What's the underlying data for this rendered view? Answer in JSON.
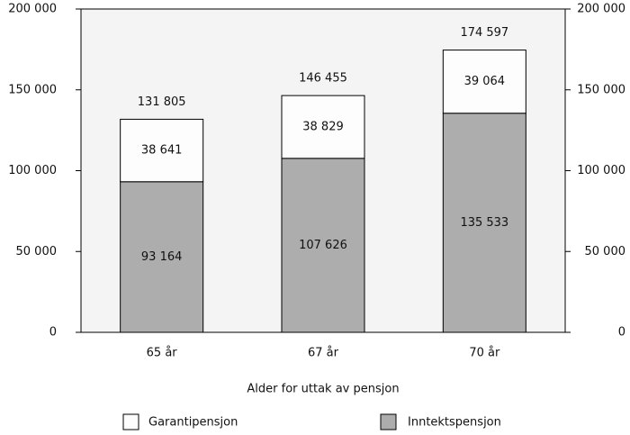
{
  "chart_data": {
    "type": "stacked-bar",
    "categories": [
      "65 år",
      "67 år",
      "70 år"
    ],
    "x_label": "Alder for uttak av pensjon",
    "series": [
      {
        "name": "Inntektspensjon",
        "color": "#adadad",
        "values": [
          93164,
          107626,
          135533
        ],
        "value_labels": [
          "93 164",
          "107 626",
          "135 533"
        ]
      },
      {
        "name": "Garantipensjon",
        "color": "#fdfdfd",
        "values": [
          38641,
          38829,
          39064
        ],
        "value_labels": [
          "38 641",
          "38 829",
          "39 064"
        ]
      }
    ],
    "totals": {
      "values": [
        131805,
        146455,
        174597
      ],
      "value_labels": [
        "131 805",
        "146 455",
        "174 597"
      ]
    },
    "ylim": [
      0,
      200000
    ],
    "yticks": [
      0,
      {
        "value": 50000,
        "label": "50 000"
      },
      {
        "value": 100000,
        "label": "100 000"
      },
      {
        "value": 150000,
        "label": "150 000"
      },
      {
        "value": 200000,
        "label": "200 000"
      }
    ],
    "y2lim": [
      0,
      200000
    ],
    "y2ticks": [
      0,
      {
        "value": 50000,
        "label": "50 000"
      },
      {
        "value": 100000,
        "label": "100 000"
      },
      {
        "value": 150000,
        "label": "150 000"
      },
      {
        "value": 200000,
        "label": "200 000"
      }
    ],
    "plot_background": "#f4f4f4"
  }
}
